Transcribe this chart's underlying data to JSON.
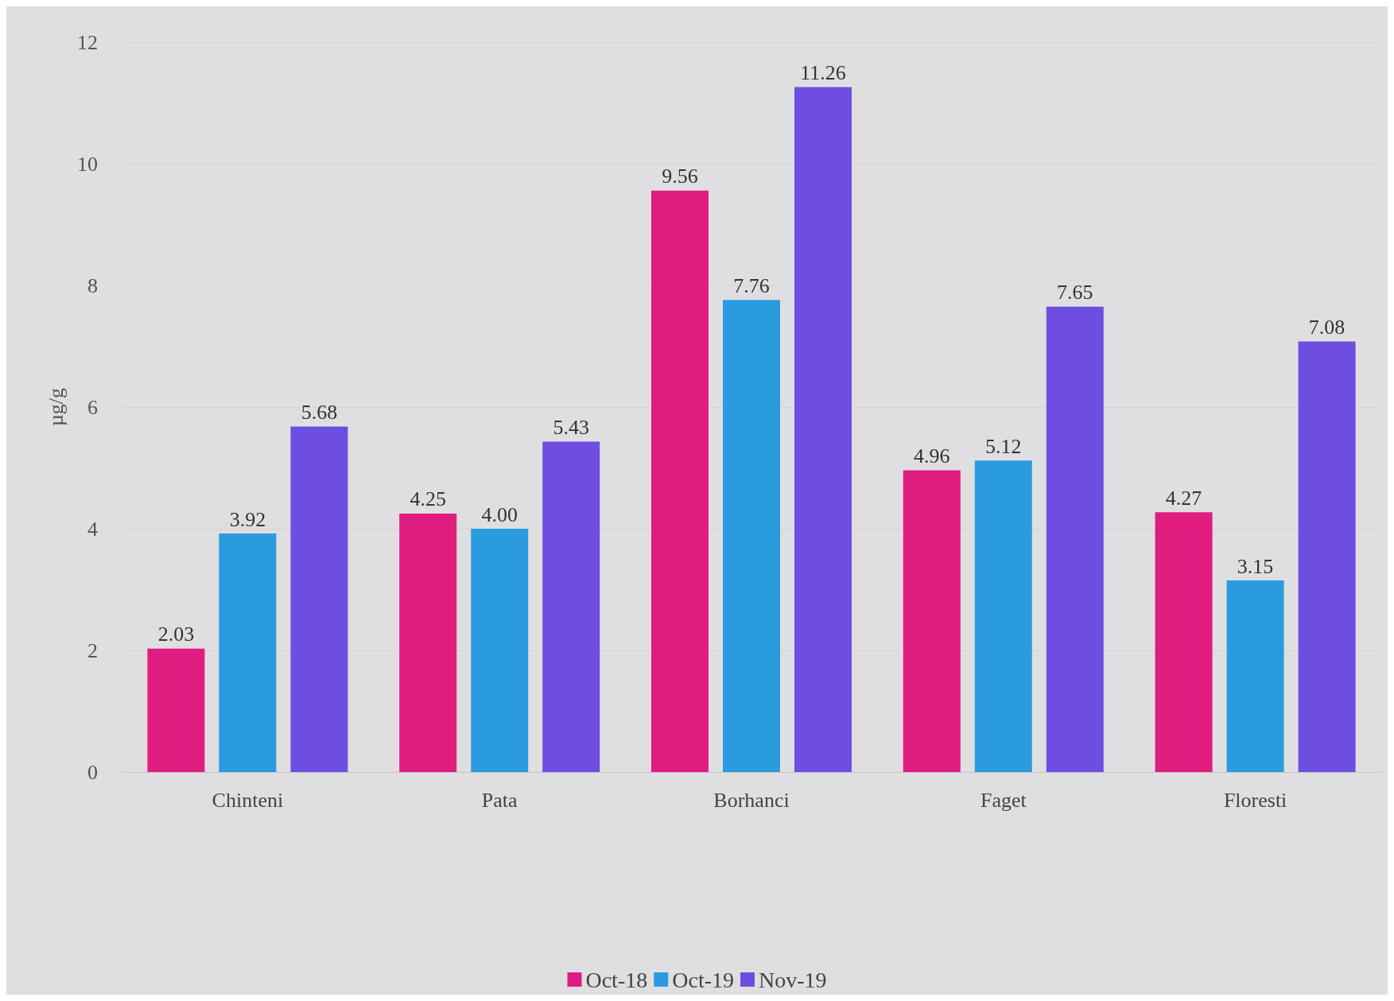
{
  "chart_data": {
    "type": "bar",
    "ylabel": "µg/g",
    "categories": [
      "Chinteni",
      "Pata",
      "Borhanci",
      "Faget",
      "Floresti"
    ],
    "series": [
      {
        "name": "Oct-18",
        "color": "#e01c80",
        "values": [
          2.03,
          4.25,
          9.56,
          4.96,
          4.27
        ],
        "value_labels": [
          "2.03",
          "4.25",
          "9.56",
          "4.96",
          "4.27"
        ]
      },
      {
        "name": "Oct-19",
        "color": "#2b9be0",
        "values": [
          3.92,
          4.0,
          7.76,
          5.12,
          3.15
        ],
        "value_labels": [
          "3.92",
          "4.00",
          "7.76",
          "5.12",
          "3.15"
        ]
      },
      {
        "name": "Nov-19",
        "color": "#6e4ee0",
        "values": [
          5.68,
          5.43,
          11.26,
          7.65,
          7.08
        ],
        "value_labels": [
          "5.68",
          "5.43",
          "11.26",
          "7.65",
          "7.08"
        ]
      }
    ],
    "ylim": [
      0,
      12
    ],
    "yticks": [
      0,
      2,
      4,
      6,
      8,
      10,
      12
    ],
    "grid": "y",
    "legend": "bottom"
  }
}
